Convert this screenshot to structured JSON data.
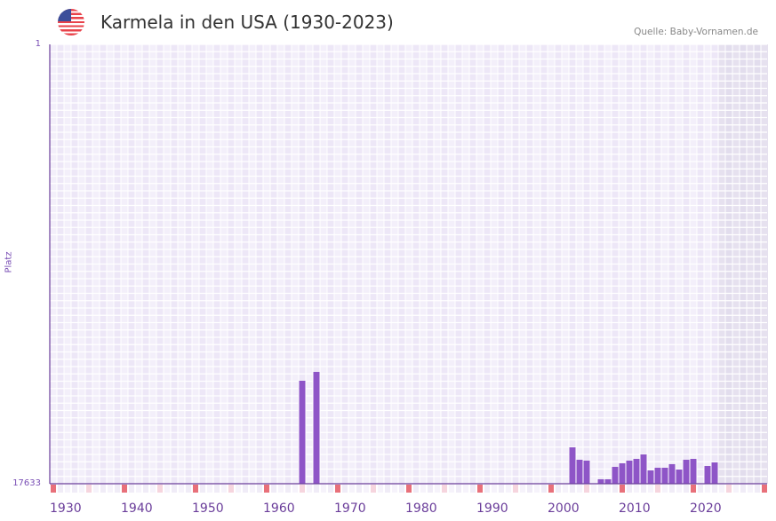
{
  "header": {
    "title": "Karmela in den USA (1930-2023)",
    "source": "Quelle: Baby-Vornamen.de",
    "flag_icon": "us-flag-icon"
  },
  "chart_data": {
    "type": "bar",
    "title": "Karmela in den USA (1930-2023)",
    "ylabel": "Platz",
    "xlabel": "",
    "y_inverted": true,
    "ylim": [
      1,
      17633
    ],
    "y_tick_labels": [
      "1",
      "17633"
    ],
    "xlim": [
      1930,
      2030
    ],
    "x_tick_labels": [
      "1930",
      "1940",
      "1950",
      "1960",
      "1970",
      "1980",
      "1990",
      "2000",
      "2010",
      "2020"
    ],
    "future_shaded_from": 2024,
    "bar_color": "#8e55c7",
    "points": [
      {
        "year": 1965,
        "rank": 13501
      },
      {
        "year": 1967,
        "rank": 13145
      },
      {
        "year": 2003,
        "rank": 16173
      },
      {
        "year": 2004,
        "rank": 16671
      },
      {
        "year": 2005,
        "rank": 16707
      },
      {
        "year": 2007,
        "rank": 17455
      },
      {
        "year": 2008,
        "rank": 17455
      },
      {
        "year": 2009,
        "rank": 16956
      },
      {
        "year": 2010,
        "rank": 16814
      },
      {
        "year": 2011,
        "rank": 16707
      },
      {
        "year": 2012,
        "rank": 16636
      },
      {
        "year": 2013,
        "rank": 16458
      },
      {
        "year": 2014,
        "rank": 17099
      },
      {
        "year": 2015,
        "rank": 16992
      },
      {
        "year": 2016,
        "rank": 16992
      },
      {
        "year": 2017,
        "rank": 16849
      },
      {
        "year": 2018,
        "rank": 17063
      },
      {
        "year": 2019,
        "rank": 16671
      },
      {
        "year": 2020,
        "rank": 16636
      },
      {
        "year": 2022,
        "rank": 16921
      },
      {
        "year": 2023,
        "rank": 16778
      }
    ]
  }
}
